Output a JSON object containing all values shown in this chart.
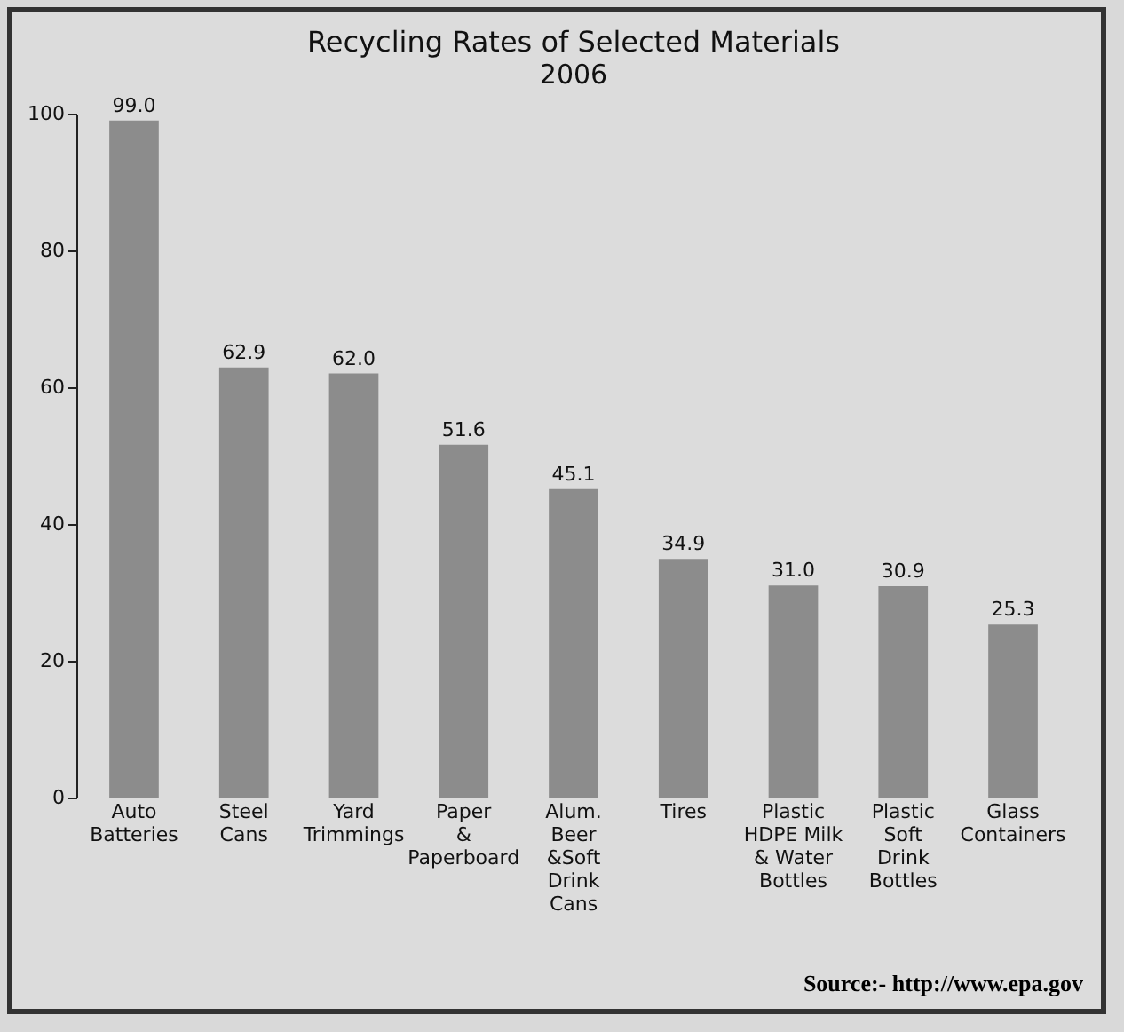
{
  "chart_data": {
    "type": "bar",
    "title": "Recycling Rates of Selected Materials",
    "subtitle": "2006",
    "categories": [
      "Auto\nBatteries",
      "Steel\nCans",
      "Yard\nTrimmings",
      "Paper\n&\nPaperboard",
      "Alum.\nBeer\n&Soft\nDrink\nCans",
      "Tires",
      "Plastic\nHDPE Milk\n& Water\nBottles",
      "Plastic\nSoft\nDrink\nBottles",
      "Glass\nContainers"
    ],
    "values": [
      99.0,
      62.9,
      62.0,
      51.6,
      45.1,
      34.9,
      31.0,
      30.9,
      25.3
    ],
    "value_labels": [
      "99.0",
      "62.9",
      "62.0",
      "51.6",
      "45.1",
      "34.9",
      "31.0",
      "30.9",
      "25.3"
    ],
    "color": "#8c8c8c",
    "ylim": [
      0,
      100
    ],
    "yticks": [
      0,
      20,
      40,
      60,
      80,
      100
    ],
    "annotations": [
      "Source:- http://www.epa.gov"
    ]
  }
}
